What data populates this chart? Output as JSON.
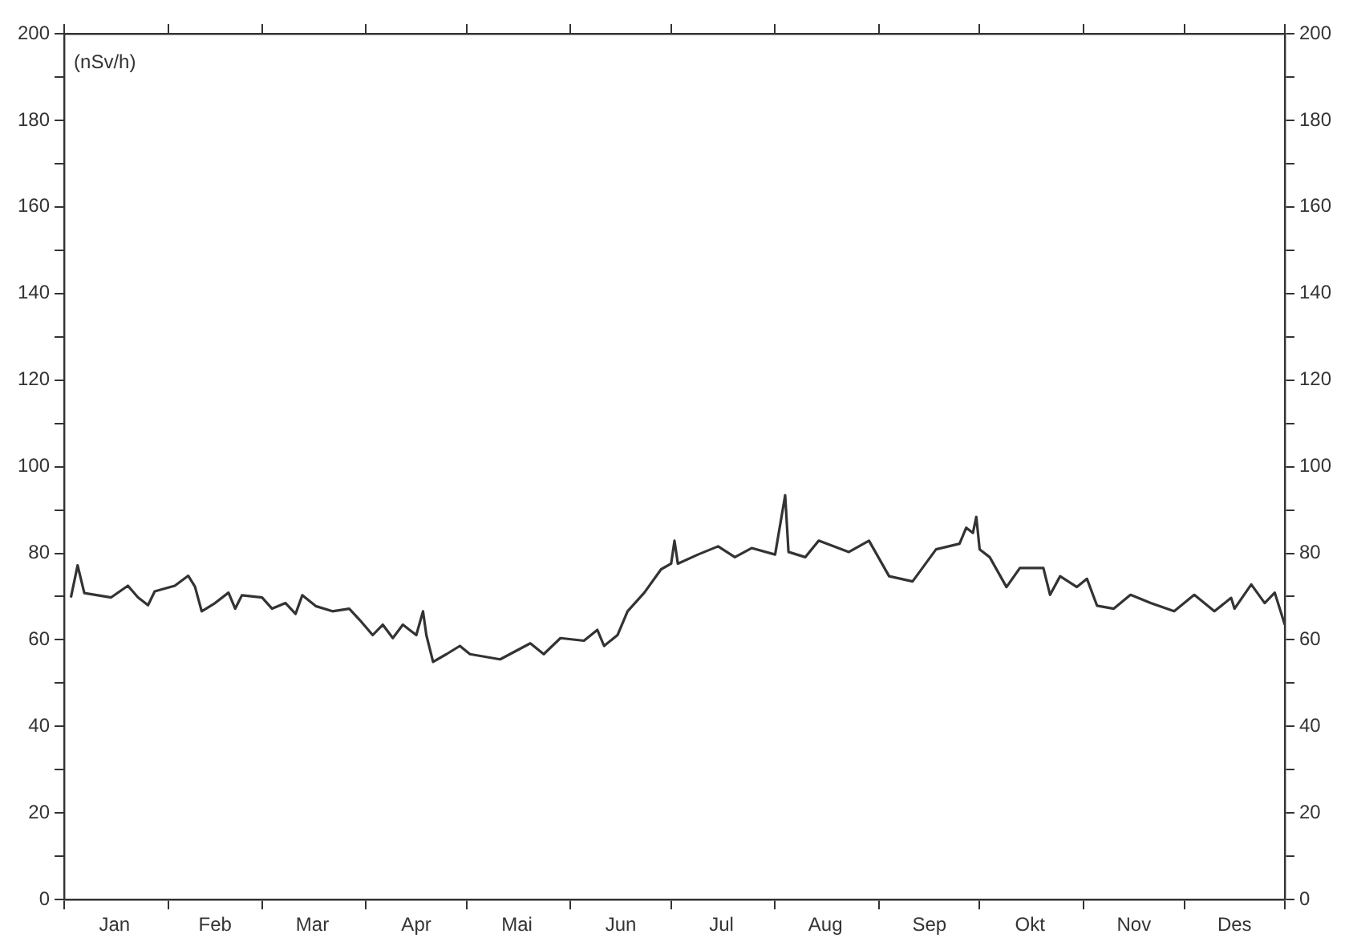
{
  "chart_data": {
    "type": "line",
    "ylabel": "(nSv/h)",
    "x": [
      "--01-03",
      "--01-05",
      "--01-07",
      "--01-15",
      "--01-20",
      "--01-23",
      "--01-26",
      "--01-28",
      "--02-03",
      "--02-07",
      "--02-09",
      "--02-11",
      "--02-15",
      "--02-19",
      "--02-21",
      "--02-23",
      "--03-01",
      "--03-04",
      "--03-08",
      "--03-11",
      "--03-13",
      "--03-17",
      "--03-22",
      "--03-27",
      "--03-30",
      "--04-03",
      "--04-06",
      "--04-09",
      "--04-12",
      "--04-16",
      "--04-18",
      "--04-19",
      "--04-21",
      "--04-25",
      "--04-29",
      "--05-02",
      "--05-11",
      "--05-20",
      "--05-24",
      "--05-29",
      "--06-05",
      "--06-09",
      "--06-11",
      "--06-15",
      "--06-18",
      "--06-23",
      "--06-28",
      "--07-01",
      "--07-02",
      "--07-03",
      "--07-09",
      "--07-15",
      "--07-20",
      "--07-25",
      "--08-01",
      "--08-04",
      "--08-05",
      "--08-10",
      "--08-14",
      "--08-23",
      "--08-29",
      "--09-04",
      "--09-11",
      "--09-18",
      "--09-25",
      "--09-27",
      "--09-29",
      "--09-30",
      "--10-01",
      "--10-04",
      "--10-09",
      "--10-13",
      "--10-20",
      "--10-22",
      "--10-25",
      "--10-30",
      "--11-02",
      "--11-05",
      "--11-10",
      "--11-15",
      "--11-21",
      "--11-28",
      "--12-04",
      "--12-10",
      "--12-15",
      "--12-16",
      "--12-21",
      "--12-25",
      "--12-28",
      "--12-31"
    ],
    "series": [
      {
        "color": "#333333",
        "values": [
          69.8,
          77.2,
          70.8,
          69.8,
          72.5,
          69.8,
          68,
          71.2,
          72.5,
          74.8,
          72.3,
          66.6,
          68.5,
          70.9,
          67.2,
          70.3,
          69.8,
          67.2,
          68.5,
          66,
          70.3,
          67.8,
          66.6,
          67.2,
          64.7,
          61.1,
          63.5,
          60.4,
          63.5,
          61.1,
          66.6,
          61.1,
          54.9,
          56.7,
          58.6,
          56.7,
          55.5,
          59.2,
          56.7,
          60.4,
          59.8,
          62.3,
          58.6,
          61.1,
          66.6,
          70.9,
          76.3,
          77.6,
          82.9,
          77.6,
          79.7,
          81.6,
          79.1,
          81.2,
          79.7,
          93.4,
          80.3,
          79.1,
          82.9,
          80.3,
          82.9,
          74.7,
          73.5,
          80.9,
          82.2,
          85.9,
          84.7,
          88.4,
          80.9,
          79.1,
          72.2,
          76.6,
          76.6,
          70.4,
          74.7,
          72.2,
          74.1,
          67.9,
          67.2,
          70.4,
          68.5,
          66.6,
          70.4,
          66.6,
          69.7,
          67.2,
          72.8,
          68.5,
          70.9,
          63.5
        ]
      }
    ],
    "xlim": [
      "--01-01",
      "--12-31"
    ],
    "xticks": [
      {
        "value": "--01-01",
        "label": null
      },
      {
        "value": "--01-16",
        "label": "Jan"
      },
      {
        "value": "--02-01",
        "label": null
      },
      {
        "value": "--02-15",
        "label": "Feb"
      },
      {
        "value": "--03-01",
        "label": null
      },
      {
        "value": "--03-16",
        "label": "Mar"
      },
      {
        "value": "--04-01",
        "label": null
      },
      {
        "value": "--04-16",
        "label": "Apr"
      },
      {
        "value": "--05-01",
        "label": null
      },
      {
        "value": "--05-16",
        "label": "Mai"
      },
      {
        "value": "--06-01",
        "label": null
      },
      {
        "value": "--06-16",
        "label": "Jun"
      },
      {
        "value": "--07-01",
        "label": null
      },
      {
        "value": "--07-16",
        "label": "Jul"
      },
      {
        "value": "--08-01",
        "label": null
      },
      {
        "value": "--08-16",
        "label": "Aug"
      },
      {
        "value": "--09-01",
        "label": null
      },
      {
        "value": "--09-16",
        "label": "Sep"
      },
      {
        "value": "--10-01",
        "label": null
      },
      {
        "value": "--10-16",
        "label": "Okt"
      },
      {
        "value": "--11-01",
        "label": null
      },
      {
        "value": "--11-16",
        "label": "Nov"
      },
      {
        "value": "--12-01",
        "label": null
      },
      {
        "value": "--12-16",
        "label": "Des"
      },
      {
        "value": "--12-31",
        "label": null
      }
    ],
    "ylim": [
      0,
      200
    ],
    "yticks": [
      0,
      {
        "value": 10,
        "label": null
      },
      20,
      {
        "value": 30,
        "label": null
      },
      40,
      {
        "value": 50,
        "label": null
      },
      60,
      {
        "value": 70,
        "label": null
      },
      80,
      {
        "value": 90,
        "label": null
      },
      100,
      {
        "value": 110,
        "label": null
      },
      120,
      {
        "value": 130,
        "label": null
      },
      140,
      {
        "value": 150,
        "label": null
      },
      160,
      {
        "value": 170,
        "label": null
      },
      180,
      {
        "value": 190,
        "label": null
      },
      200
    ],
    "y2lim": [
      0,
      200
    ],
    "y2ticks": [
      0,
      {
        "value": 10,
        "label": null
      },
      20,
      {
        "value": 30,
        "label": null
      },
      40,
      {
        "value": 50,
        "label": null
      },
      60,
      {
        "value": 70,
        "label": null
      },
      80,
      {
        "value": 90,
        "label": null
      },
      100,
      {
        "value": 110,
        "label": null
      },
      120,
      {
        "value": 130,
        "label": null
      },
      140,
      {
        "value": 150,
        "label": null
      },
      160,
      {
        "value": 170,
        "label": null
      },
      180,
      {
        "value": 190,
        "label": null
      },
      200
    ],
    "grid": false,
    "legend": false
  }
}
